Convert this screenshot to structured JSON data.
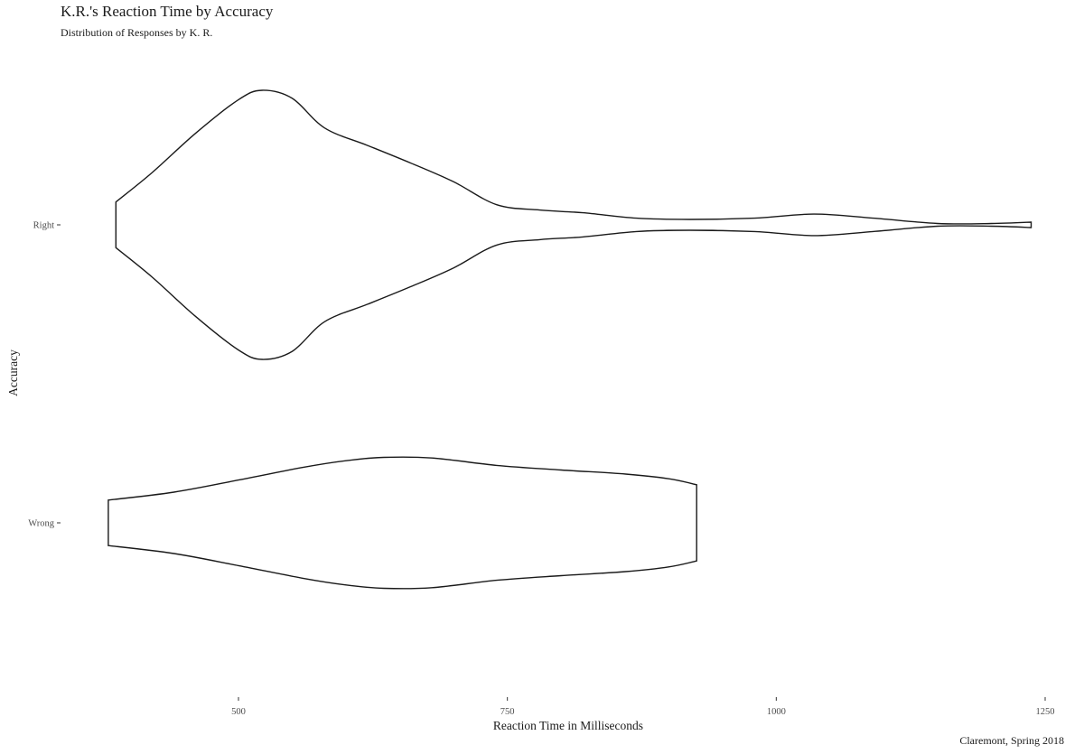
{
  "chart_data": {
    "type": "violin",
    "title": "K.R.'s Reaction Time by Accuracy",
    "subtitle": "Distribution of Responses by K. R.",
    "caption": "Claremont, Spring 2018",
    "xlabel": "Reaction Time in Milliseconds",
    "ylabel": "Accuracy",
    "xlim": [
      330,
      1255
    ],
    "x_ticks": [
      500,
      750,
      1000,
      1250
    ],
    "categories": [
      "Right",
      "Wrong"
    ],
    "grid": false,
    "legend": "none",
    "series": [
      {
        "category": "Right",
        "range": [
          386,
          1237
        ],
        "profile": [
          [
            386,
            0.17
          ],
          [
            420,
            0.39
          ],
          [
            460,
            0.68
          ],
          [
            500,
            0.93
          ],
          [
            522,
            1.0
          ],
          [
            550,
            0.94
          ],
          [
            580,
            0.72
          ],
          [
            620,
            0.59
          ],
          [
            660,
            0.46
          ],
          [
            700,
            0.32
          ],
          [
            740,
            0.15
          ],
          [
            780,
            0.11
          ],
          [
            820,
            0.09
          ],
          [
            870,
            0.05
          ],
          [
            920,
            0.04
          ],
          [
            980,
            0.05
          ],
          [
            1035,
            0.08
          ],
          [
            1090,
            0.05
          ],
          [
            1150,
            0.01
          ],
          [
            1200,
            0.01
          ],
          [
            1237,
            0.02
          ]
        ]
      },
      {
        "category": "Wrong",
        "range": [
          379,
          926
        ],
        "profile": [
          [
            379,
            0.34
          ],
          [
            440,
            0.46
          ],
          [
            500,
            0.64
          ],
          [
            560,
            0.83
          ],
          [
            600,
            0.93
          ],
          [
            635,
            0.98
          ],
          [
            680,
            0.97
          ],
          [
            740,
            0.86
          ],
          [
            800,
            0.79
          ],
          [
            860,
            0.73
          ],
          [
            900,
            0.66
          ],
          [
            926,
            0.57
          ]
        ]
      }
    ]
  }
}
